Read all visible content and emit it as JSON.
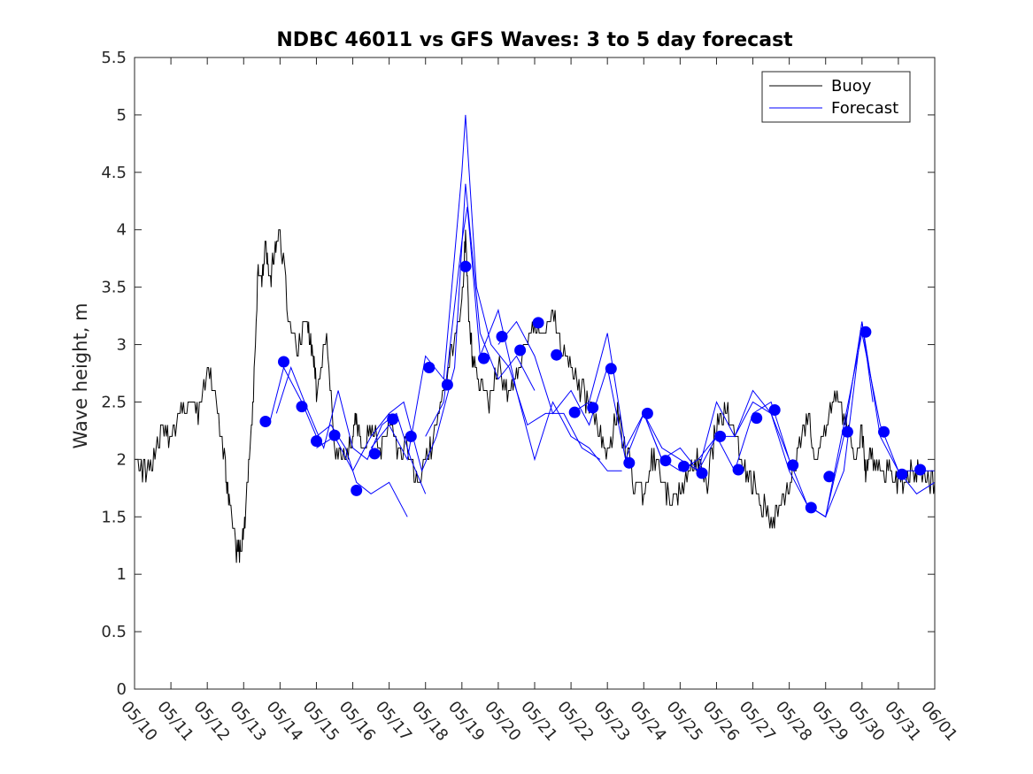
{
  "chart_data": {
    "type": "line",
    "title": "NDBC 46011 vs GFS Waves: 3 to 5 day forecast",
    "xlabel": "",
    "ylabel": "Wave height, m",
    "ylim": [
      0,
      5.5
    ],
    "yticks": [
      "0",
      "0.5",
      "1",
      "1.5",
      "2",
      "2.5",
      "3",
      "3.5",
      "4",
      "4.5",
      "5",
      "5.5"
    ],
    "xticks": [
      "05/10",
      "05/11",
      "05/12",
      "05/13",
      "05/14",
      "05/15",
      "05/16",
      "05/17",
      "05/18",
      "05/19",
      "05/20",
      "05/21",
      "05/22",
      "05/23",
      "05/24",
      "05/25",
      "05/26",
      "05/27",
      "05/28",
      "05/29",
      "05/30",
      "05/31",
      "06/01"
    ],
    "x_axis_note": "x values are days after 05/10 00:00",
    "xlim": [
      0,
      22
    ],
    "grid": false,
    "legend_position": "top-right",
    "legend": [
      "Buoy",
      "Forecast"
    ],
    "colors": {
      "buoy": "#000000",
      "forecast": "#0000ff",
      "markers": "#0000ff"
    },
    "buoy": {
      "name": "Buoy",
      "x": [
        0,
        0.25,
        0.5,
        0.75,
        1,
        1.25,
        1.5,
        1.75,
        2,
        2.25,
        2.5,
        2.6,
        2.8,
        2.9,
        3,
        3.1,
        3.25,
        3.4,
        3.5,
        3.6,
        3.7,
        3.85,
        4,
        4.25,
        4.5,
        4.75,
        4.9,
        5,
        5.25,
        5.5,
        5.75,
        6,
        6.1,
        6.25,
        6.5,
        6.75,
        7,
        7.25,
        7.5,
        7.75,
        8,
        8.25,
        8.5,
        8.75,
        9,
        9.1,
        9.2,
        9.3,
        9.5,
        9.75,
        10,
        10.25,
        10.5,
        10.75,
        11,
        11.25,
        11.5,
        11.75,
        12,
        12.25,
        12.5,
        12.75,
        13,
        13.25,
        13.5,
        13.75,
        14,
        14.25,
        14.5,
        14.75,
        15,
        15.25,
        15.5,
        15.75,
        16,
        16.25,
        16.5,
        16.75,
        17,
        17.25,
        17.5,
        17.75,
        18,
        18.25,
        18.5,
        18.75,
        19,
        19.25,
        19.5,
        19.75,
        20,
        20.1,
        20.25,
        20.5,
        20.75,
        21,
        21.25,
        21.5,
        21.75,
        22
      ],
      "y": [
        2.1,
        1.9,
        2.0,
        2.3,
        2.2,
        2.4,
        2.5,
        2.4,
        2.8,
        2.5,
        1.9,
        1.6,
        1.2,
        1.2,
        1.3,
        1.8,
        2.4,
        3.7,
        3.5,
        3.9,
        3.5,
        3.8,
        4.0,
        3.2,
        3.0,
        3.2,
        2.9,
        2.6,
        3.1,
        2.1,
        2.0,
        2.2,
        2.4,
        2.1,
        2.3,
        2.1,
        2.3,
        2.0,
        2.1,
        1.8,
        2.0,
        2.2,
        2.6,
        3.0,
        3.4,
        3.9,
        3.2,
        2.9,
        2.7,
        2.5,
        2.8,
        2.6,
        2.7,
        3.0,
        3.2,
        3.0,
        3.3,
        3.0,
        2.8,
        2.6,
        2.5,
        2.3,
        2.0,
        2.4,
        2.1,
        1.8,
        1.7,
        2.0,
        1.8,
        1.6,
        1.7,
        1.9,
        2.0,
        1.8,
        2.3,
        2.4,
        2.3,
        1.9,
        1.8,
        1.6,
        1.5,
        1.6,
        1.8,
        2.1,
        2.4,
        2.0,
        2.2,
        2.6,
        2.4,
        2.0,
        2.2,
        1.9,
        2.0,
        1.9,
        1.9,
        1.8,
        1.85,
        1.9,
        1.85,
        1.8
      ]
    },
    "forecast_series": [
      {
        "x": [
          3.7,
          4.1,
          4.6,
          5.0,
          5.4,
          5.8,
          6.1,
          6.5,
          7.0,
          7.5
        ],
        "y": [
          2.3,
          2.8,
          2.5,
          2.2,
          2.3,
          2.1,
          1.8,
          1.7,
          1.8,
          1.5
        ]
      },
      {
        "x": [
          3.9,
          4.3,
          4.8,
          5.2,
          5.6,
          6.0,
          6.4,
          6.8,
          7.2,
          7.6,
          8.0
        ],
        "y": [
          2.4,
          2.8,
          2.4,
          2.1,
          2.6,
          2.1,
          2.0,
          2.3,
          2.4,
          2.0,
          1.7
        ]
      },
      {
        "x": [
          5.0,
          5.5,
          6.0,
          6.5,
          7.0,
          7.4,
          7.9,
          8.3,
          8.8,
          9.1,
          9.5,
          10.0,
          10.5,
          11.0
        ],
        "y": [
          2.1,
          2.2,
          1.9,
          2.2,
          2.4,
          2.5,
          1.9,
          2.2,
          2.8,
          4.4,
          3.1,
          2.7,
          2.9,
          2.6
        ]
      },
      {
        "x": [
          6.5,
          7.0,
          7.5,
          8.0,
          8.5,
          9.0,
          9.1,
          9.4,
          9.8,
          10.3,
          10.8,
          11.3,
          11.8,
          12.3,
          12.8
        ],
        "y": [
          2.1,
          2.3,
          2.0,
          2.9,
          2.7,
          4.5,
          5.0,
          3.5,
          3.0,
          2.8,
          2.3,
          2.4,
          2.4,
          2.1,
          2.0
        ]
      },
      {
        "x": [
          8.0,
          8.5,
          9.0,
          9.15,
          9.5,
          10.0,
          10.5,
          11.0,
          11.5,
          12.0,
          12.5,
          13.0,
          13.4
        ],
        "y": [
          2.2,
          2.5,
          3.9,
          4.2,
          2.9,
          3.3,
          2.6,
          2.0,
          2.5,
          2.2,
          2.1,
          1.9,
          1.9
        ]
      },
      {
        "x": [
          10.0,
          10.5,
          11.0,
          11.5,
          12.0,
          12.5,
          13.0,
          13.5,
          14.0,
          14.5,
          15.0,
          15.5,
          16.0
        ],
        "y": [
          3.0,
          3.2,
          2.9,
          2.4,
          2.6,
          2.3,
          2.8,
          2.0,
          2.4,
          2.1,
          2.0,
          1.9,
          2.2
        ]
      },
      {
        "x": [
          12.0,
          12.5,
          13.0,
          13.5,
          14.0,
          14.5,
          15.0,
          15.5,
          16.0,
          16.5,
          17.0,
          17.5,
          18.0
        ],
        "y": [
          2.4,
          2.5,
          3.1,
          2.1,
          2.4,
          2.0,
          2.1,
          1.9,
          2.5,
          2.2,
          2.6,
          2.4,
          2.0
        ]
      },
      {
        "x": [
          14.0,
          14.5,
          15.0,
          15.5,
          16.0,
          16.5,
          17.0,
          17.5,
          18.0,
          18.5,
          19.0,
          19.5,
          20.0,
          20.3
        ],
        "y": [
          2.4,
          2.0,
          1.9,
          2.0,
          2.2,
          2.2,
          2.5,
          2.4,
          1.9,
          1.6,
          1.5,
          2.2,
          3.2,
          2.5
        ]
      },
      {
        "x": [
          16.0,
          16.5,
          17.0,
          17.5,
          18.0,
          18.5,
          19.0,
          19.5,
          20.0,
          20.5,
          21.0,
          21.5,
          22.0
        ],
        "y": [
          2.2,
          1.9,
          2.4,
          2.5,
          2.0,
          1.6,
          1.5,
          1.9,
          3.2,
          2.2,
          1.9,
          1.7,
          1.8
        ]
      },
      {
        "x": [
          18.5,
          19.0,
          19.5,
          20.0,
          20.5,
          21.0,
          21.5,
          22.0
        ],
        "y": [
          1.6,
          1.5,
          2.3,
          3.1,
          2.3,
          1.9,
          1.9,
          1.9
        ]
      }
    ],
    "markers": {
      "x": [
        3.6,
        4.1,
        4.6,
        5.0,
        5.5,
        6.1,
        6.6,
        7.1,
        7.6,
        8.1,
        8.6,
        9.1,
        9.6,
        10.1,
        10.6,
        11.1,
        11.6,
        12.1,
        12.6,
        13.1,
        13.6,
        14.1,
        14.6,
        15.1,
        15.6,
        16.1,
        16.6,
        17.1,
        17.6,
        18.1,
        18.6,
        19.1,
        19.6,
        20.1,
        20.6,
        21.1,
        21.6
      ],
      "y": [
        2.33,
        2.85,
        2.46,
        2.16,
        2.21,
        1.73,
        2.05,
        2.35,
        2.2,
        2.8,
        2.65,
        3.68,
        2.88,
        3.07,
        2.95,
        3.19,
        2.91,
        2.41,
        2.45,
        2.79,
        1.97,
        2.4,
        1.99,
        1.94,
        1.88,
        2.2,
        1.91,
        2.36,
        2.43,
        1.95,
        1.58,
        1.85,
        2.24,
        3.11,
        2.24,
        1.87,
        1.91
      ]
    }
  }
}
